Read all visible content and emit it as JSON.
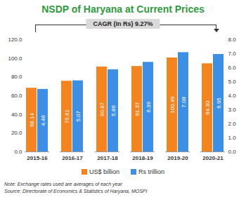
{
  "chart_data": {
    "type": "bar",
    "title": "NSDP of Haryana at Current Prices",
    "annotation": "CAGR (In Rs) 9.27%",
    "categories": [
      "2015-16",
      "2016-17",
      "2017-18",
      "2018-19",
      "2019-20",
      "2020-21"
    ],
    "series": [
      {
        "name": "US$ billion",
        "color": "#f5841f",
        "values": [
          68.14,
          75.61,
          90.87,
          91.37,
          100.49,
          94.3
        ],
        "value_labels": [
          "68.14",
          "75.61",
          "90.87",
          "91.37",
          "100.49",
          "94.30"
        ]
      },
      {
        "name": "Rs trillion",
        "color": "#3d8fe5",
        "axis": "y2",
        "values": [
          4.46,
          5.07,
          5.86,
          6.39,
          7.08,
          6.95
        ],
        "value_labels": [
          "4.46",
          "5.07",
          "5.86",
          "6.39",
          "7.08",
          "6.95"
        ]
      }
    ],
    "ylim": [
      0,
      120
    ],
    "yticks": [
      {
        "value": 0,
        "label": "0.0"
      },
      {
        "value": 20,
        "label": "20.0"
      },
      {
        "value": 40,
        "label": "40.0"
      },
      {
        "value": 60,
        "label": "60.0"
      },
      {
        "value": 80,
        "label": "80.0"
      },
      {
        "value": 100,
        "label": "100.0"
      },
      {
        "value": 120,
        "label": "120.0"
      }
    ],
    "y2lim": [
      0,
      8
    ],
    "y2ticks": [
      {
        "value": 0,
        "label": "0.0"
      },
      {
        "value": 1,
        "label": "1.0"
      },
      {
        "value": 2,
        "label": "2.0"
      },
      {
        "value": 3,
        "label": "3.0"
      },
      {
        "value": 4,
        "label": "4.0"
      },
      {
        "value": 5,
        "label": "5.0"
      },
      {
        "value": 6,
        "label": "6.0"
      },
      {
        "value": 7,
        "label": "7.0"
      },
      {
        "value": 8,
        "label": "8.0"
      }
    ],
    "data_labels": true,
    "legend": "bottom",
    "notes": [
      "Note: Exchange rates used are averages of each year",
      "Source: Directorate of Economics & Statistics of Haryana, MOSPI"
    ]
  }
}
